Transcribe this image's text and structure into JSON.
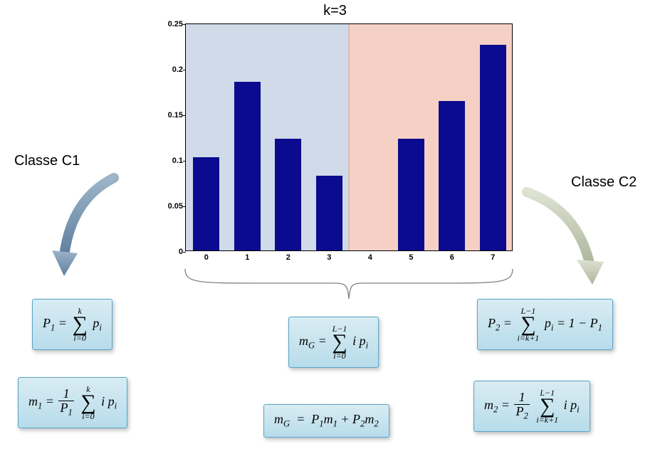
{
  "title": "k=3",
  "class_left_label": "Classe C1",
  "class_right_label": "Classe C2",
  "chart": {
    "type": "bar",
    "categories": [
      "0",
      "1",
      "2",
      "3",
      "4",
      "5",
      "6",
      "7"
    ],
    "values": [
      0.102,
      0.185,
      0.123,
      0.082,
      0.0,
      0.123,
      0.164,
      0.226
    ],
    "ylim": [
      0,
      0.25
    ],
    "yticks": [
      0,
      0.05,
      0.1,
      0.15,
      0.2,
      0.25
    ],
    "bar_color": "#0b0b8f",
    "bar_width": 0.65,
    "region_left_color": "rgba(120,150,190,0.35)",
    "region_right_color": "rgba(230,140,110,0.40)",
    "region_split_after_index": 3,
    "background_color": "#ffffff",
    "border_color": "#000000",
    "tick_fontsize": 11
  },
  "arrows": {
    "left_color": "#7a95b0",
    "right_color": "#c5ccb7"
  },
  "formula_box_style": {
    "bg_top": "#d8ecf3",
    "bg_bottom": "#b8dceb",
    "border": "#5aa4c7"
  },
  "formulas": {
    "p1": "P₁ = Σ_{i=0}^{k} pᵢ",
    "m1": "m₁ = (1/P₁) Σ_{i=0}^{k} i pᵢ",
    "mg_sum": "m_G = Σ_{i=0}^{L-1} i pᵢ",
    "mg_decomp": "m_G = P₁m₁ + P₂m₂",
    "p2": "P₂ = Σ_{i=k+1}^{L-1} pᵢ = 1 - P₁",
    "m2": "m₂ = (1/P₂) Σ_{i=k+1}^{L-1} i pᵢ"
  }
}
